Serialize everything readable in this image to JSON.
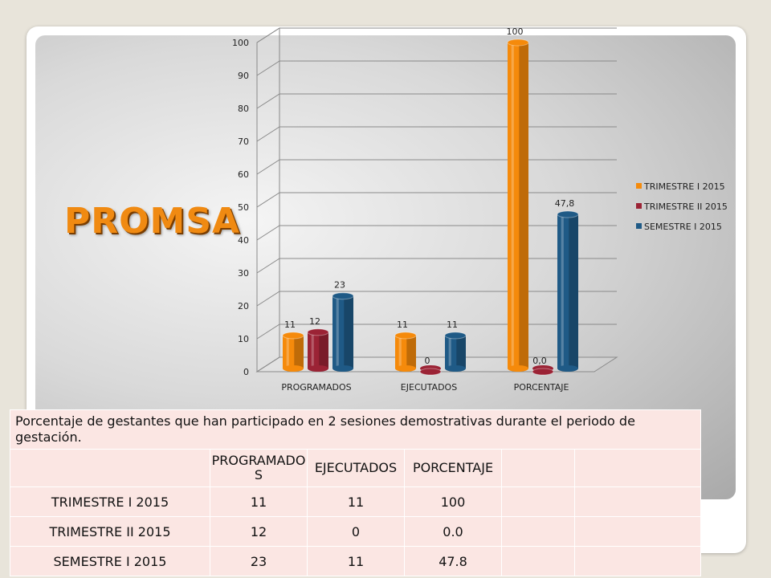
{
  "slide": {
    "title": "PROMSA"
  },
  "chart_data": {
    "type": "bar",
    "categories": [
      "PROGRAMADOS",
      "EJECUTADOS",
      "PORCENTAJE"
    ],
    "series": [
      {
        "name": "TRIMESTRE I 2015",
        "values": [
          11,
          11,
          100
        ],
        "labels": [
          "11",
          "11",
          "100"
        ],
        "color": "#f58a0b"
      },
      {
        "name": "TRIMESTRE II 2015",
        "values": [
          12,
          0,
          0
        ],
        "labels": [
          "12",
          "0",
          "0,0"
        ],
        "color": "#9b2335"
      },
      {
        "name": "SEMESTRE I 2015",
        "values": [
          23,
          11,
          47.8
        ],
        "labels": [
          "23",
          "11",
          "47,8"
        ],
        "color": "#1f5a86"
      }
    ],
    "yticks": [
      "0",
      "10",
      "20",
      "30",
      "40",
      "50",
      "60",
      "70",
      "80",
      "90",
      "100"
    ],
    "ylim": [
      0,
      100
    ],
    "grid": true,
    "legend": "right"
  },
  "table": {
    "caption": "Porcentaje de gestantes que han participado en 2 sesiones demostrativas durante el periodo de gestación.",
    "headers": [
      "",
      "PROGRAMADO S",
      "EJECUTADOS",
      "PORCENTAJE",
      "",
      ""
    ],
    "rows": [
      {
        "label": "TRIMESTRE I 2015",
        "programados": "11",
        "ejecutados": "11",
        "porcentaje": "100"
      },
      {
        "label": "TRIMESTRE II 2015",
        "programados": "12",
        "ejecutados": "0",
        "porcentaje": "0.0"
      },
      {
        "label": "SEMESTRE I 2015",
        "programados": "23",
        "ejecutados": "11",
        "porcentaje": "47.8"
      }
    ]
  }
}
